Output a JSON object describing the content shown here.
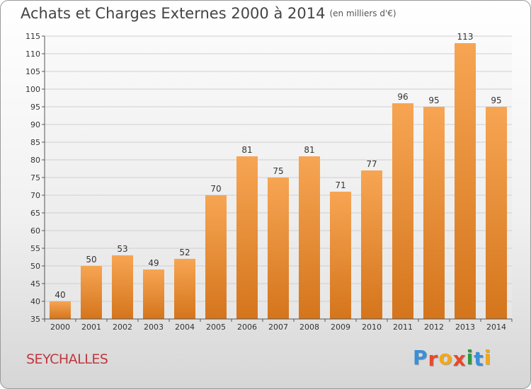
{
  "header": {
    "title": "Achats et Charges Externes 2000 à 2014",
    "subtitle": "(en milliers d'€)"
  },
  "footer": {
    "commune": "SEYCHALLES",
    "logo_letters": [
      "P",
      "r",
      "o",
      "x",
      "i",
      "t",
      "i"
    ],
    "logo_colors": [
      "#3b8fd6",
      "#e8492b",
      "#f2a81d",
      "#e8492b",
      "#2c9a3f",
      "#3b8fd6",
      "#f2a81d"
    ]
  },
  "chart_data": {
    "type": "bar",
    "title": "Achats et Charges Externes 2000 à 2014",
    "categories": [
      "2000",
      "2001",
      "2002",
      "2003",
      "2004",
      "2005",
      "2006",
      "2007",
      "2008",
      "2009",
      "2010",
      "2011",
      "2012",
      "2013",
      "2014"
    ],
    "values": [
      40,
      50,
      53,
      49,
      52,
      70,
      81,
      75,
      81,
      71,
      77,
      96,
      95,
      113,
      95
    ],
    "ylim": [
      35,
      115
    ],
    "yticks": [
      35,
      40,
      45,
      50,
      55,
      60,
      65,
      70,
      75,
      80,
      85,
      90,
      95,
      100,
      105,
      110,
      115
    ],
    "grid": true,
    "bar_color": "#f0923a"
  }
}
